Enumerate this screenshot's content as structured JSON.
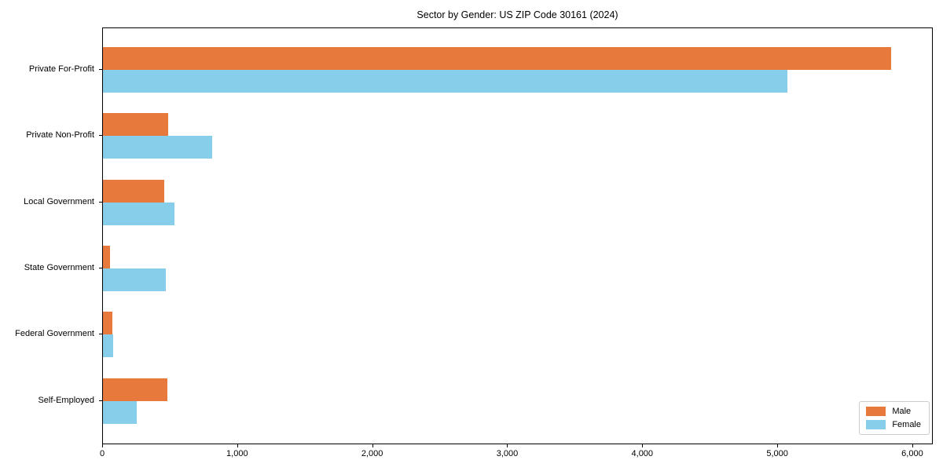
{
  "chart_data": {
    "type": "bar",
    "orientation": "horizontal",
    "title": "Sector by Gender: US ZIP Code 30161 (2024)",
    "categories": [
      "Private For-Profit",
      "Private Non-Profit",
      "Local Government",
      "State Government",
      "Federal Government",
      "Self-Employed"
    ],
    "series": [
      {
        "name": "Male",
        "color": "#E8793C",
        "values": [
          5840,
          485,
          455,
          55,
          70,
          480
        ]
      },
      {
        "name": "Female",
        "color": "#87CEEB",
        "values": [
          5070,
          810,
          530,
          465,
          75,
          250
        ]
      }
    ],
    "xlabel": "",
    "ylabel": "",
    "xlim": [
      0,
      6140
    ],
    "x_tick_values": [
      0,
      1000,
      2000,
      3000,
      4000,
      5000,
      6000
    ],
    "x_tick_labels": [
      "0",
      "1,000",
      "2,000",
      "3,000",
      "4,000",
      "5,000",
      "6,000"
    ],
    "grid": false,
    "legend_position": "lower right",
    "frame": "full-box"
  }
}
